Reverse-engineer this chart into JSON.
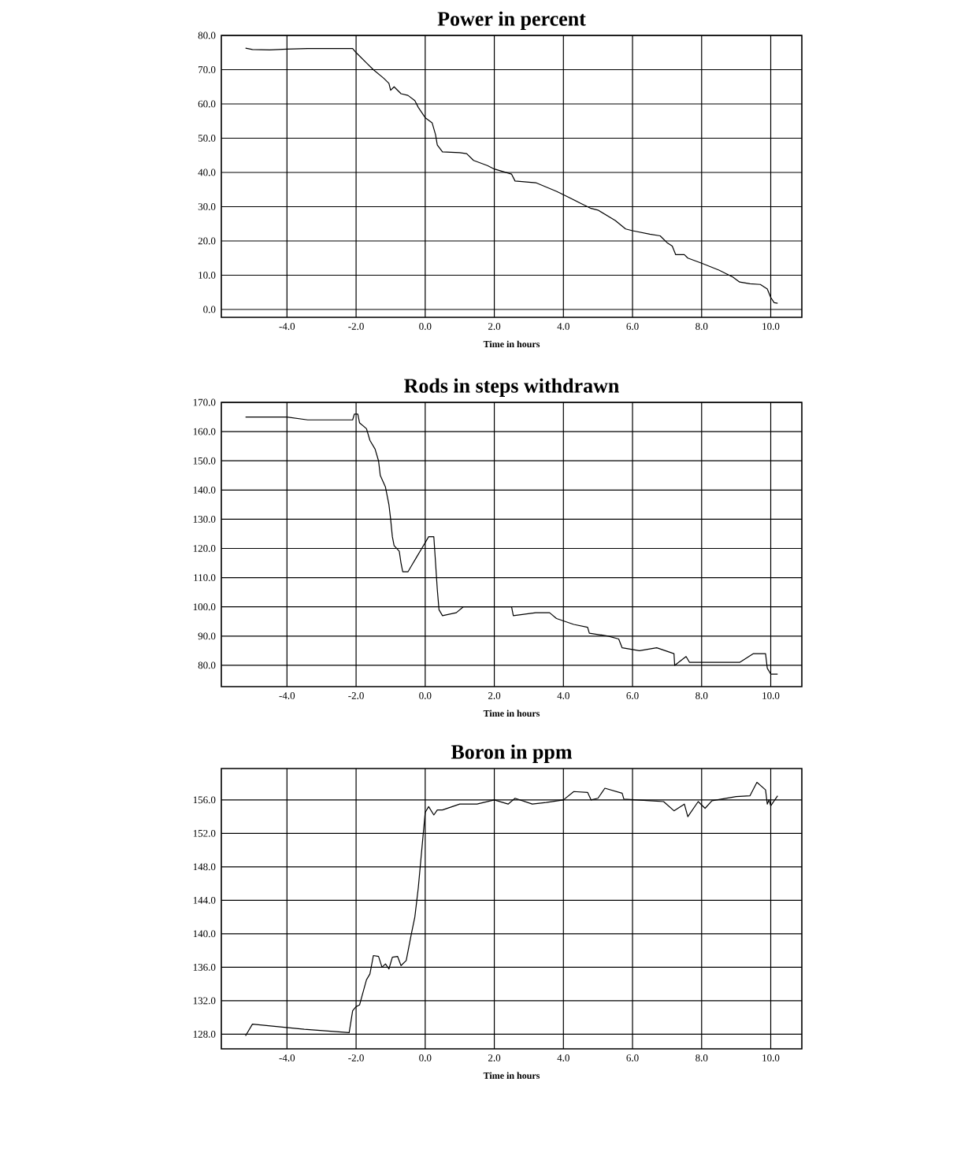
{
  "chart_data": [
    {
      "type": "line",
      "title": "Power in percent",
      "xlabel": "Time in hours",
      "grid": true,
      "xlim": [
        -5.9,
        10.9
      ],
      "ylim": [
        -2.3,
        80
      ],
      "xticks": [
        {
          "value": -4,
          "label": "-4.0"
        },
        {
          "value": -2,
          "label": "-2.0"
        },
        {
          "value": 0,
          "label": "0.0"
        },
        {
          "value": 2,
          "label": "2.0"
        },
        {
          "value": 4,
          "label": "4.0"
        },
        {
          "value": 6,
          "label": "6.0"
        },
        {
          "value": 8,
          "label": "8.0"
        },
        {
          "value": 10,
          "label": "10.0"
        }
      ],
      "yticks": [
        {
          "value": 0,
          "label": "0.0"
        },
        {
          "value": 10,
          "label": "10.0"
        },
        {
          "value": 20,
          "label": "20.0"
        },
        {
          "value": 30,
          "label": "30.0"
        },
        {
          "value": 40,
          "label": "40.0"
        },
        {
          "value": 50,
          "label": "50.0"
        },
        {
          "value": 60,
          "label": "60.0"
        },
        {
          "value": 70,
          "label": "70.0"
        },
        {
          "value": 80,
          "label": "80.0"
        }
      ],
      "series": [
        {
          "color": "#000000",
          "x": [
            -5.2,
            -5.0,
            -4.5,
            -4.0,
            -3.4,
            -2.1,
            -2.0,
            -1.7,
            -1.5,
            -1.2,
            -1.05,
            -1.0,
            -0.9,
            -0.7,
            -0.5,
            -0.3,
            -0.2,
            0.0,
            0.2,
            0.3,
            0.35,
            0.5,
            1.0,
            1.2,
            1.4,
            1.8,
            2.0,
            2.5,
            2.6,
            3.2,
            3.8,
            4.0,
            4.5,
            4.8,
            5.0,
            5.5,
            5.8,
            6.0,
            6.5,
            6.8,
            7.0,
            7.15,
            7.25,
            7.5,
            7.6,
            8.0,
            8.5,
            8.9,
            9.1,
            9.4,
            9.7,
            9.9,
            10.0,
            10.1,
            10.2
          ],
          "values": [
            76.3,
            75.9,
            75.8,
            76,
            76.2,
            76.2,
            75,
            72,
            70,
            67.5,
            66,
            64,
            65,
            63,
            62.5,
            61,
            59,
            56,
            54.5,
            51,
            48,
            46,
            45.8,
            45.5,
            43.5,
            42,
            41,
            39.5,
            37.5,
            37,
            34.5,
            33.5,
            31,
            29.5,
            29,
            26,
            23.5,
            23,
            22,
            21.5,
            19.5,
            18.5,
            16,
            16,
            15,
            13.5,
            11.5,
            9.5,
            8,
            7.5,
            7.3,
            6,
            3.5,
            2,
            1.8
          ]
        }
      ]
    },
    {
      "type": "line",
      "title": "Rods in steps withdrawn",
      "xlabel": "Time in hours",
      "grid": true,
      "xlim": [
        -5.9,
        10.9
      ],
      "ylim": [
        72.7,
        170
      ],
      "xticks": [
        {
          "value": -4,
          "label": "-4.0"
        },
        {
          "value": -2,
          "label": "-2.0"
        },
        {
          "value": 0,
          "label": "0.0"
        },
        {
          "value": 2,
          "label": "2.0"
        },
        {
          "value": 4,
          "label": "4.0"
        },
        {
          "value": 6,
          "label": "6.0"
        },
        {
          "value": 8,
          "label": "8.0"
        },
        {
          "value": 10,
          "label": "10.0"
        }
      ],
      "yticks": [
        {
          "value": 80,
          "label": "80.0"
        },
        {
          "value": 90,
          "label": "90.0"
        },
        {
          "value": 100,
          "label": "100.0"
        },
        {
          "value": 110,
          "label": "110.0"
        },
        {
          "value": 120,
          "label": "120.0"
        },
        {
          "value": 130,
          "label": "130.0"
        },
        {
          "value": 140,
          "label": "140.0"
        },
        {
          "value": 150,
          "label": "150.0"
        },
        {
          "value": 160,
          "label": "160.0"
        },
        {
          "value": 170,
          "label": "170.0"
        }
      ],
      "series": [
        {
          "color": "#000000",
          "x": [
            -5.2,
            -4.0,
            -3.4,
            -2.1,
            -2.05,
            -1.95,
            -1.9,
            -1.7,
            -1.6,
            -1.45,
            -1.35,
            -1.3,
            -1.15,
            -1.05,
            -1.0,
            -0.95,
            -0.9,
            -0.75,
            -0.7,
            -0.65,
            -0.5,
            -0.4,
            -0.25,
            -0.1,
            0.0,
            0.1,
            0.25,
            0.3,
            0.35,
            0.4,
            0.5,
            0.9,
            1.1,
            2.5,
            2.55,
            3.2,
            3.6,
            3.8,
            4.3,
            4.7,
            4.75,
            5.3,
            5.6,
            5.7,
            6.2,
            6.7,
            7.2,
            7.22,
            7.55,
            7.65,
            9.1,
            9.5,
            9.85,
            9.9,
            10.0,
            10.2
          ],
          "values": [
            165,
            165,
            164,
            164,
            166,
            166,
            163,
            161,
            157,
            154,
            150,
            145,
            141,
            135,
            130,
            124,
            121,
            119,
            115,
            112,
            112,
            114,
            117,
            120,
            122,
            124,
            124,
            115,
            106,
            99,
            97,
            98,
            100,
            100,
            97,
            98,
            98,
            96,
            94,
            93,
            91,
            90,
            89,
            86,
            85,
            86,
            84,
            80,
            83,
            81,
            81,
            84,
            84,
            79,
            77,
            77
          ]
        }
      ]
    },
    {
      "type": "line",
      "title": "Boron in ppm",
      "xlabel": "Time in hours",
      "grid": true,
      "xlim": [
        -5.9,
        10.9
      ],
      "ylim": [
        126.25,
        159.75
      ],
      "xticks": [
        {
          "value": -4,
          "label": "-4.0"
        },
        {
          "value": -2,
          "label": "-2.0"
        },
        {
          "value": 0,
          "label": "0.0"
        },
        {
          "value": 2,
          "label": "2.0"
        },
        {
          "value": 4,
          "label": "4.0"
        },
        {
          "value": 6,
          "label": "6.0"
        },
        {
          "value": 8,
          "label": "8.0"
        },
        {
          "value": 10,
          "label": "10.0"
        }
      ],
      "yticks": [
        {
          "value": 128,
          "label": "128.0"
        },
        {
          "value": 132,
          "label": "132.0"
        },
        {
          "value": 136,
          "label": "136.0"
        },
        {
          "value": 140,
          "label": "140.0"
        },
        {
          "value": 144,
          "label": "144.0"
        },
        {
          "value": 148,
          "label": "148.0"
        },
        {
          "value": 152,
          "label": "152.0"
        },
        {
          "value": 156,
          "label": "156.0"
        }
      ],
      "series": [
        {
          "color": "#000000",
          "x": [
            -5.2,
            -5.0,
            -4.0,
            -3.5,
            -2.2,
            -2.1,
            -2.0,
            -1.9,
            -1.7,
            -1.6,
            -1.5,
            -1.35,
            -1.25,
            -1.15,
            -1.05,
            -0.95,
            -0.8,
            -0.7,
            -0.55,
            -0.4,
            -0.3,
            -0.2,
            -0.1,
            0.0,
            0.1,
            0.25,
            0.35,
            0.5,
            1.0,
            1.5,
            2.0,
            2.4,
            2.6,
            3.1,
            3.5,
            4.0,
            4.3,
            4.7,
            4.8,
            5.0,
            5.2,
            5.7,
            5.75,
            6.5,
            6.9,
            7.2,
            7.5,
            7.6,
            7.9,
            8.1,
            8.3,
            9.0,
            9.4,
            9.6,
            9.85,
            9.9,
            9.95,
            10.0,
            10.2
          ],
          "values": [
            127.8,
            129.2,
            128.8,
            128.6,
            128.2,
            130.8,
            131.3,
            131.5,
            134.5,
            135.2,
            137.4,
            137.3,
            136,
            136.4,
            135.8,
            137.2,
            137.3,
            136.2,
            136.8,
            140,
            142,
            145.5,
            150,
            154.5,
            155.2,
            154.2,
            154.8,
            154.8,
            155.5,
            155.5,
            156,
            155.5,
            156.2,
            155.5,
            155.7,
            156,
            157,
            156.9,
            156,
            156.2,
            157.4,
            156.8,
            156.1,
            155.9,
            155.8,
            154.7,
            155.5,
            154,
            155.8,
            155,
            155.9,
            156.4,
            156.5,
            158.1,
            157.2,
            155.5,
            156,
            155.3,
            156.5
          ]
        }
      ]
    }
  ]
}
